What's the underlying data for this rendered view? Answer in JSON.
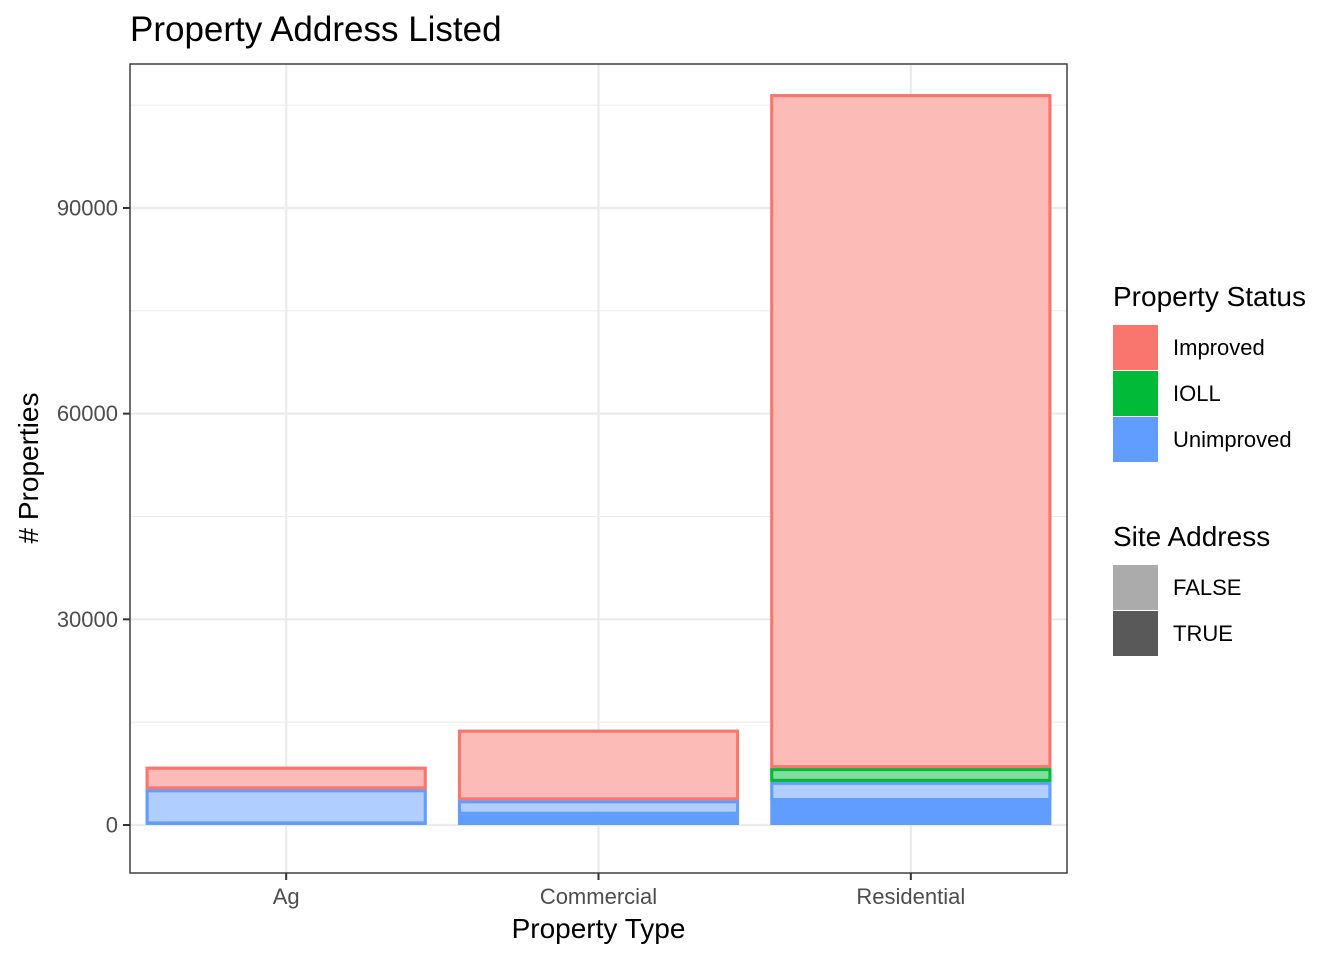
{
  "chart_data": {
    "type": "bar",
    "title": "Property Address Listed",
    "xlabel": "Property Type",
    "ylabel": "# Properties",
    "categories": [
      "Ag",
      "Commercial",
      "Residential"
    ],
    "ylim": [
      -7000,
      111000
    ],
    "yticks": [
      0,
      30000,
      60000,
      90000
    ],
    "yticks_labels": [
      "0",
      "30000",
      "60000",
      "90000"
    ],
    "minor_yticks": [
      15000,
      45000,
      75000,
      105000
    ],
    "grid": true,
    "legend_position": "right",
    "segments": [
      {
        "category": "Ag",
        "status": "Unimproved",
        "site_address": "TRUE",
        "value": 100
      },
      {
        "category": "Ag",
        "status": "Unimproved",
        "site_address": "FALSE",
        "value": 5100
      },
      {
        "category": "Ag",
        "status": "Improved",
        "site_address": "FALSE",
        "value": 3300
      },
      {
        "category": "Commercial",
        "status": "Unimproved",
        "site_address": "TRUE",
        "value": 1500
      },
      {
        "category": "Commercial",
        "status": "Unimproved",
        "site_address": "FALSE",
        "value": 2100
      },
      {
        "category": "Commercial",
        "status": "Improved",
        "site_address": "FALSE",
        "value": 10300
      },
      {
        "category": "Residential",
        "status": "Unimproved",
        "site_address": "TRUE",
        "value": 3500
      },
      {
        "category": "Residential",
        "status": "Unimproved",
        "site_address": "FALSE",
        "value": 2800
      },
      {
        "category": "Residential",
        "status": "IOLL",
        "site_address": "FALSE",
        "value": 2000
      },
      {
        "category": "Residential",
        "status": "Improved",
        "site_address": "FALSE",
        "value": 98300
      }
    ],
    "legends": [
      {
        "title": "Property Status",
        "items": [
          {
            "label": "Improved",
            "color": "#F8766D"
          },
          {
            "label": "IOLL",
            "color": "#00BA38"
          },
          {
            "label": "Unimproved",
            "color": "#619CFF"
          }
        ]
      },
      {
        "title": "Site Address",
        "items": [
          {
            "label": "FALSE",
            "color": "#ababab"
          },
          {
            "label": "TRUE",
            "color": "#595959"
          }
        ]
      }
    ],
    "colors": {
      "Improved": "#F8766D",
      "IOLL": "#00BA38",
      "Unimproved": "#619CFF",
      "FALSE_overlay": "#ffffff",
      "FALSE_overlay_opacity": 0.5
    }
  }
}
